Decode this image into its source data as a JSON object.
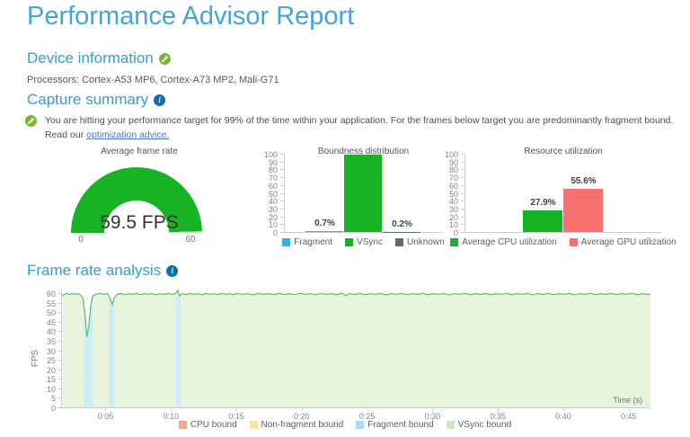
{
  "page": {
    "title": "Performance Advisor Report"
  },
  "icons": {
    "info_glyph": "i"
  },
  "colors": {
    "heading_blue": "#2f9fd6",
    "title_blue": "#41a5dc",
    "info_icon": "#0c6fa6",
    "advice_green": "#76b82e",
    "link_blue": "#4a72c8"
  },
  "sections": {
    "device": {
      "heading": "Device information",
      "processors": "Processors: Cortex-A53 MP6, Cortex-A73 MP2, Mali-G71"
    },
    "capture": {
      "heading": "Capture summary",
      "advice_text": "You are hitting your performance target for 99% of the time within your application. For the frames below target you are predominantly fragment bound. Read our",
      "advice_link": "optimization advice."
    },
    "frame_rate": {
      "heading": "Frame rate analysis"
    }
  },
  "chart_data": [
    {
      "id": "average_frame_rate",
      "type": "gauge",
      "title": "Average frame rate",
      "value": 59.5,
      "display": "59.5 FPS",
      "min": 0,
      "max": 60,
      "color": "#17b325",
      "track_color": "#d9d9d9"
    },
    {
      "id": "boundness_distribution",
      "type": "bar",
      "title": "Boundness distribution",
      "categories": [
        "Fragment",
        "VSync",
        "Unknown"
      ],
      "values": [
        0.7,
        99.1,
        0.2
      ],
      "bar_labels": [
        "0.7%",
        "",
        "0.2%"
      ],
      "colors": [
        "#27b8de",
        "#17b325",
        "#5d6a75"
      ],
      "ylim": [
        0,
        100
      ],
      "y_ticks": [
        100,
        90,
        80,
        70,
        60,
        50,
        40,
        30,
        20,
        10,
        0
      ],
      "legend": [
        {
          "label": "Fragment",
          "color": "#27b8de"
        },
        {
          "label": "VSync",
          "color": "#17b325"
        },
        {
          "label": "Unknown",
          "color": "#5d6a75"
        }
      ]
    },
    {
      "id": "resource_utilization",
      "type": "bar",
      "title": "Resource utilization",
      "categories": [
        "Average CPU utilization",
        "Average GPU utilization"
      ],
      "values": [
        27.9,
        55.6
      ],
      "bar_labels": [
        "27.9%",
        "55.6%"
      ],
      "colors": [
        "#17b325",
        "#f8706f"
      ],
      "ylim": [
        0,
        100
      ],
      "y_ticks": [
        100,
        90,
        80,
        70,
        60,
        50,
        40,
        30,
        20,
        10,
        0
      ],
      "legend": [
        {
          "label": "Average CPU utilization",
          "color": "#17b325"
        },
        {
          "label": "Average GPU utilization",
          "color": "#f8706f"
        }
      ]
    },
    {
      "id": "frame_rate_analysis",
      "type": "line",
      "ylabel": "FPS",
      "xlabel": "Time (s)",
      "ylim": [
        0,
        62
      ],
      "y_ticks": [
        60,
        55,
        50,
        45,
        40,
        35,
        30,
        25,
        20,
        15,
        10,
        5,
        0
      ],
      "x_domain": [
        1.6,
        46.6
      ],
      "x_ticks": [
        {
          "t": 5,
          "label": "0:05"
        },
        {
          "t": 10,
          "label": "0:10"
        },
        {
          "t": 15,
          "label": "0:15"
        },
        {
          "t": 20,
          "label": "0:20"
        },
        {
          "t": 25,
          "label": "0:25"
        },
        {
          "t": 30,
          "label": "0:30"
        },
        {
          "t": 35,
          "label": "0:35"
        },
        {
          "t": 40,
          "label": "0:40"
        },
        {
          "t": 45,
          "label": "0:45"
        }
      ],
      "line_color": "#5fbc61",
      "area_color": "#e9f4dc",
      "band_color": "#cdedf7",
      "bands": [
        {
          "t0": 3.25,
          "t1": 3.95
        },
        {
          "t0": 5.2,
          "t1": 5.6
        },
        {
          "t0": 10.3,
          "t1": 10.65
        }
      ],
      "points": [
        [
          1.6,
          58.8
        ],
        [
          1.8,
          59.6
        ],
        [
          2.0,
          59.9
        ],
        [
          2.2,
          59.4
        ],
        [
          2.4,
          59.8
        ],
        [
          2.6,
          59.5
        ],
        [
          2.8,
          59.9
        ],
        [
          3.0,
          59.2
        ],
        [
          3.2,
          57.5
        ],
        [
          3.35,
          50.0
        ],
        [
          3.5,
          37.0
        ],
        [
          3.65,
          43.0
        ],
        [
          3.8,
          53.5
        ],
        [
          3.95,
          58.5
        ],
        [
          4.2,
          59.6
        ],
        [
          4.5,
          59.9
        ],
        [
          4.8,
          59.5
        ],
        [
          5.1,
          59.8
        ],
        [
          5.3,
          57.0
        ],
        [
          5.45,
          54.0
        ],
        [
          5.6,
          57.5
        ],
        [
          5.8,
          59.5
        ],
        [
          6.1,
          59.9
        ],
        [
          6.4,
          59.3
        ],
        [
          6.7,
          59.8
        ],
        [
          7.0,
          59.4
        ],
        [
          7.3,
          60.0
        ],
        [
          7.6,
          59.3
        ],
        [
          7.9,
          59.8
        ],
        [
          8.2,
          59.5
        ],
        [
          8.5,
          59.9
        ],
        [
          8.8,
          59.2
        ],
        [
          9.1,
          59.8
        ],
        [
          9.4,
          59.4
        ],
        [
          9.7,
          59.9
        ],
        [
          10.0,
          59.5
        ],
        [
          10.3,
          59.9
        ],
        [
          10.45,
          61.7
        ],
        [
          10.6,
          58.7
        ],
        [
          10.8,
          59.8
        ],
        [
          11.1,
          59.3
        ],
        [
          11.4,
          59.9
        ],
        [
          11.7,
          59.5
        ],
        [
          12.0,
          59.8
        ],
        [
          12.3,
          59.2
        ],
        [
          12.6,
          59.9
        ],
        [
          12.9,
          59.5
        ],
        [
          13.2,
          59.8
        ],
        [
          13.5,
          59.3
        ],
        [
          13.8,
          60.0
        ],
        [
          14.1,
          59.4
        ],
        [
          14.4,
          59.8
        ],
        [
          14.7,
          59.3
        ],
        [
          15.0,
          59.9
        ],
        [
          15.4,
          59.5
        ],
        [
          15.8,
          59.8
        ],
        [
          16.2,
          59.2
        ],
        [
          16.6,
          59.9
        ],
        [
          17.0,
          59.5
        ],
        [
          17.4,
          59.8
        ],
        [
          17.8,
          59.3
        ],
        [
          18.2,
          59.9
        ],
        [
          18.6,
          59.4
        ],
        [
          19.0,
          59.8
        ],
        [
          19.4,
          59.3
        ],
        [
          19.8,
          60.0
        ],
        [
          20.2,
          59.5
        ],
        [
          20.6,
          59.8
        ],
        [
          21.0,
          59.2
        ],
        [
          21.4,
          59.9
        ],
        [
          21.8,
          59.5
        ],
        [
          22.2,
          59.8
        ],
        [
          22.6,
          59.3
        ],
        [
          23.0,
          60.1
        ],
        [
          23.3,
          58.8
        ],
        [
          23.6,
          59.8
        ],
        [
          24.0,
          59.4
        ],
        [
          24.4,
          59.9
        ],
        [
          24.8,
          59.3
        ],
        [
          25.2,
          59.8
        ],
        [
          25.6,
          59.5
        ],
        [
          26.0,
          59.9
        ],
        [
          26.4,
          59.2
        ],
        [
          26.8,
          59.8
        ],
        [
          27.2,
          59.5
        ],
        [
          27.6,
          59.9
        ],
        [
          28.0,
          59.3
        ],
        [
          28.4,
          59.8
        ],
        [
          28.8,
          59.5
        ],
        [
          29.2,
          60.0
        ],
        [
          29.6,
          59.3
        ],
        [
          30.0,
          59.8
        ],
        [
          30.4,
          59.5
        ],
        [
          30.8,
          59.9
        ],
        [
          31.2,
          59.2
        ],
        [
          31.6,
          59.8
        ],
        [
          32.0,
          59.5
        ],
        [
          32.4,
          60.0
        ],
        [
          32.8,
          59.3
        ],
        [
          33.2,
          59.8
        ],
        [
          33.6,
          59.4
        ],
        [
          34.0,
          59.9
        ],
        [
          34.4,
          59.3
        ],
        [
          34.8,
          59.8
        ],
        [
          35.2,
          59.5
        ],
        [
          35.6,
          60.0
        ],
        [
          36.0,
          59.3
        ],
        [
          36.4,
          59.8
        ],
        [
          36.8,
          59.5
        ],
        [
          37.2,
          59.9
        ],
        [
          37.6,
          59.2
        ],
        [
          38.0,
          59.8
        ],
        [
          38.4,
          59.4
        ],
        [
          38.8,
          60.0
        ],
        [
          39.2,
          59.3
        ],
        [
          39.6,
          59.8
        ],
        [
          40.0,
          59.5
        ],
        [
          40.4,
          59.9
        ],
        [
          40.8,
          59.2
        ],
        [
          41.2,
          59.8
        ],
        [
          41.6,
          59.5
        ],
        [
          42.0,
          60.0
        ],
        [
          42.4,
          59.3
        ],
        [
          42.8,
          59.8
        ],
        [
          43.2,
          59.4
        ],
        [
          43.6,
          59.9
        ],
        [
          44.0,
          59.3
        ],
        [
          44.4,
          59.8
        ],
        [
          44.8,
          59.5
        ],
        [
          45.2,
          60.0
        ],
        [
          45.6,
          59.3
        ],
        [
          46.0,
          59.8
        ],
        [
          46.3,
          59.4
        ],
        [
          46.6,
          59.7
        ]
      ],
      "legend": [
        {
          "label": "CPU bound",
          "color": "#f5a98e"
        },
        {
          "label": "Non-fragment bound",
          "color": "#f8e2a4"
        },
        {
          "label": "Fragment bound",
          "color": "#abddf2"
        },
        {
          "label": "VSync bound",
          "color": "#cfe8b8"
        }
      ]
    }
  ]
}
